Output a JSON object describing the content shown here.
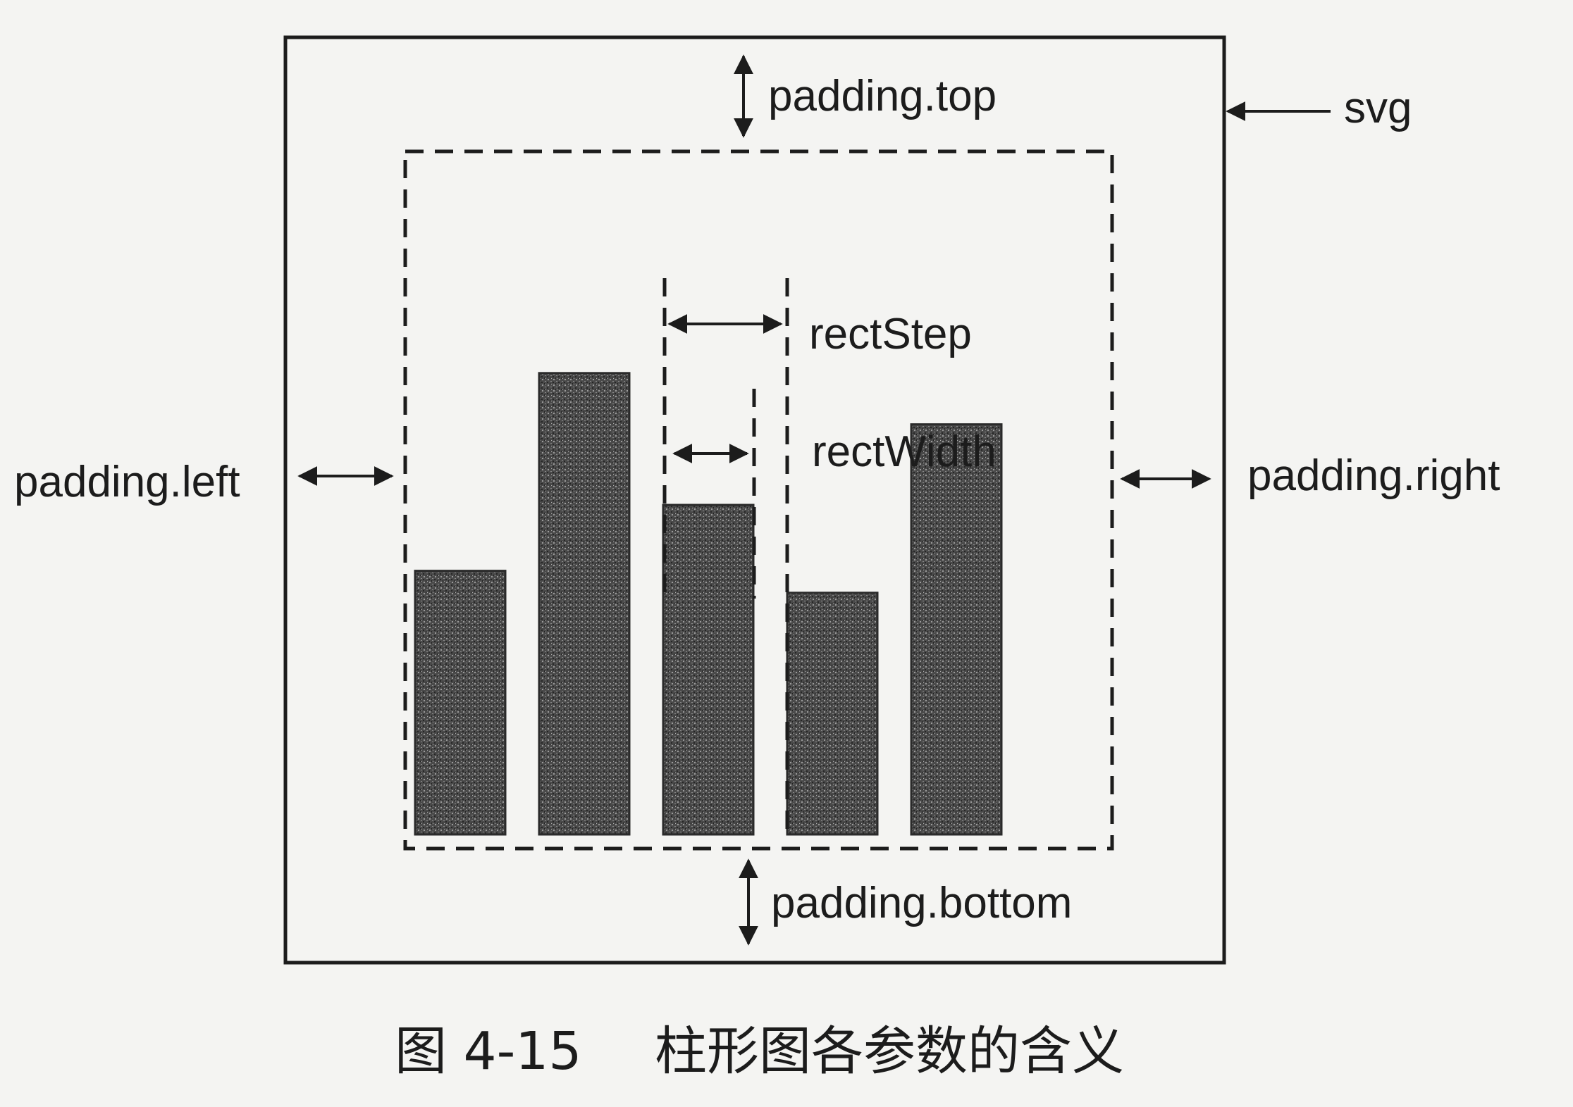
{
  "labels": {
    "padding_top": "padding.top",
    "padding_bottom": "padding.bottom",
    "padding_left": "padding.left",
    "padding_right": "padding.right",
    "svg": "svg",
    "rect_step": "rectStep",
    "rect_width": "rectWidth"
  },
  "caption": {
    "figure_no": "图 4-15",
    "title": "柱形图各参数的含义"
  },
  "bar_values": [
    0.36,
    0.63,
    0.45,
    0.33,
    0.56
  ],
  "colors": {
    "ink": "#1c1c1c",
    "bar_fill": "#4a4a4a",
    "background": "#f4f4f2"
  }
}
